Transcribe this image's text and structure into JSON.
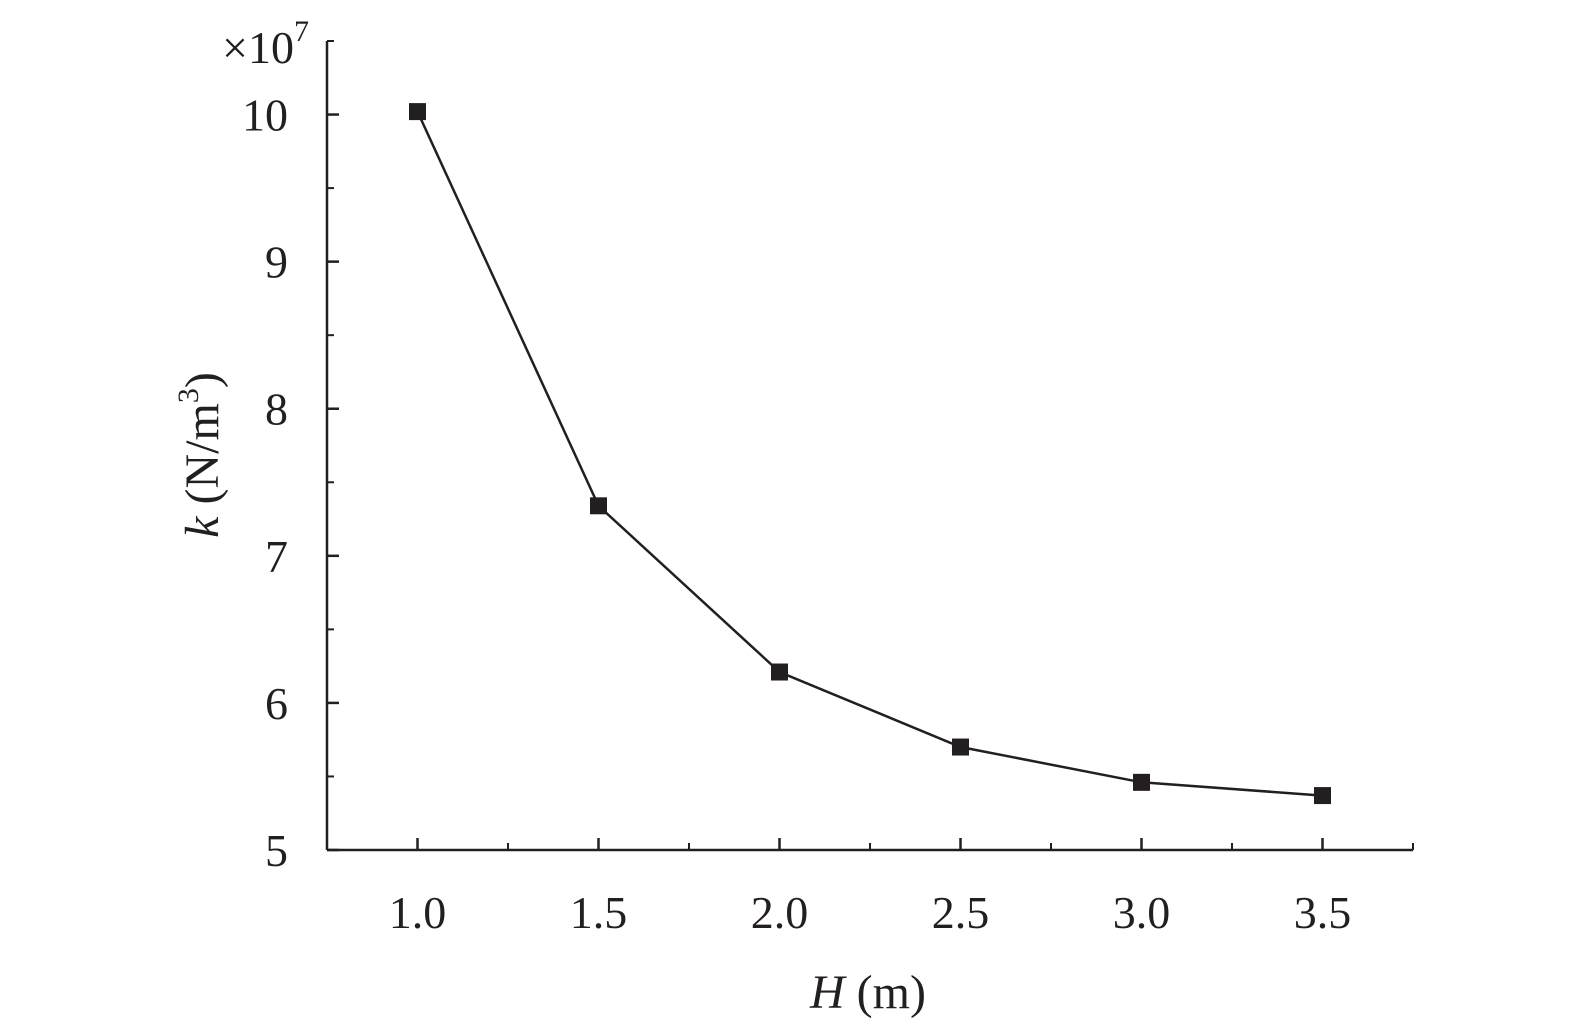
{
  "chart_data": {
    "type": "line",
    "x": [
      1.0,
      1.5,
      2.0,
      2.5,
      3.0,
      3.5
    ],
    "series": [
      {
        "values": [
          10.02,
          7.34,
          6.21,
          5.7,
          5.46,
          5.37
        ]
      }
    ],
    "xlabel": {
      "symbol": "H",
      "unit": " (m)"
    },
    "ylabel": {
      "symbol": "k",
      "unit_open": " (N/m",
      "unit_exp": "3",
      "unit_close": ")"
    },
    "y_multiplier": {
      "base": "×10",
      "exponent": "7"
    },
    "xlim": [
      0.75,
      3.75
    ],
    "ylim": [
      5,
      10.5
    ],
    "x_ticks": [
      "1.0",
      "1.5",
      "2.0",
      "2.5",
      "3.0",
      "3.5"
    ],
    "y_ticks": [
      "5",
      "6",
      "7",
      "8",
      "9",
      "10"
    ],
    "grid": false,
    "legend": "none",
    "marker": "square",
    "color": "#231f20"
  }
}
